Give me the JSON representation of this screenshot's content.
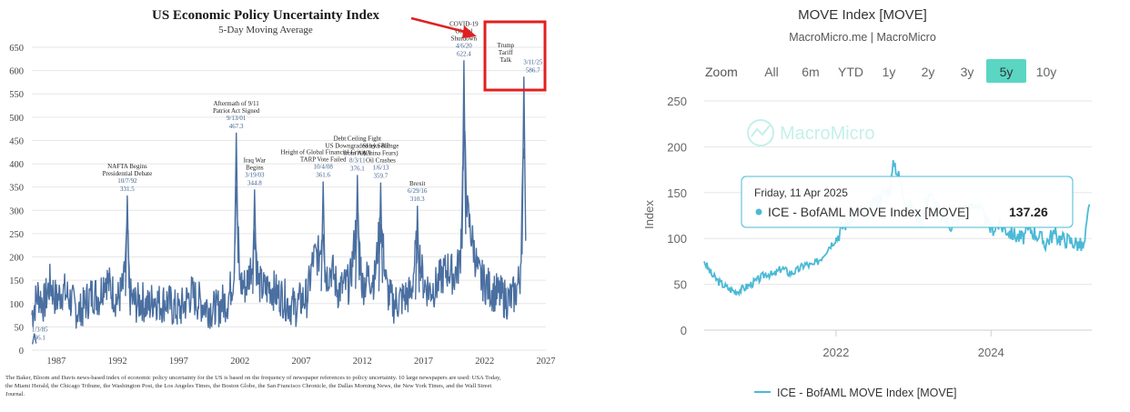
{
  "colors": {
    "epu_line": "#4a6fa0",
    "epu_annot": "#3d5f8f",
    "highlight": "#e02020",
    "move_line": "#4bb9d6",
    "zoom_active": "#5ad6c3",
    "grid": "#e6e6e6"
  },
  "left": {
    "title": "US Economic Policy Uncertainty Index",
    "subtitle": "5-Day Moving Average",
    "footnote": [
      "The Baker, Bloom and Davis news-based index of economic policy uncertainty for the US is based on the frequency of newspaper references to policy uncertainty. 10 large newspapers are used: USA Today,",
      "the Miami Herald, the Chicago Tribune, the Washington Post, the Los Angeles Times, the Boston Globe, the San Francisco Chronicle, the Dallas Morning News, the New York Times, and the Wall Street",
      "Journal."
    ]
  },
  "right": {
    "title": "MOVE Index [MOVE]",
    "source": "MacroMicro.me | MacroMicro",
    "zoom_label": "Zoom",
    "ranges": [
      "All",
      "6m",
      "YTD",
      "1y",
      "2y",
      "3y",
      "5y",
      "10y"
    ],
    "active_range": "5y",
    "watermark": "MacroMicro",
    "tooltip": {
      "date": "Friday, 11 Apr 2025",
      "series": "ICE - BofAML MOVE Index [MOVE]",
      "value": "137.26"
    },
    "legend": "ICE - BofAML MOVE Index [MOVE]"
  },
  "chart_data": [
    {
      "type": "line",
      "title": "US Economic Policy Uncertainty Index",
      "subtitle": "5-Day Moving Average",
      "ylim": [
        0,
        650
      ],
      "yticks": [
        0,
        50,
        100,
        150,
        200,
        250,
        300,
        350,
        400,
        450,
        500,
        550,
        600,
        650
      ],
      "xlim": [
        1985,
        2027
      ],
      "xticks": [
        1987,
        1992,
        1997,
        2002,
        2007,
        2012,
        2017,
        2022,
        2027
      ],
      "grid": true,
      "series": [
        {
          "x": [
            1985.0,
            1985.5,
            1986.0,
            1986.5,
            1987.0,
            1987.5,
            1988.0,
            1988.5,
            1989.0,
            1989.5,
            1990.0,
            1990.5,
            1991.0,
            1991.5,
            1992.0,
            1992.5,
            1992.8,
            1993.0,
            1993.5,
            1994.0,
            1994.5,
            1995.0,
            1995.5,
            1996.0,
            1996.5,
            1997.0,
            1997.5,
            1998.0,
            1998.5,
            1999.0,
            1999.5,
            2000.0,
            2000.5,
            2001.0,
            2001.5,
            2001.7,
            2002.0,
            2002.5,
            2003.0,
            2003.2,
            2003.5,
            2004.0,
            2004.5,
            2005.0,
            2005.5,
            2006.0,
            2006.5,
            2007.0,
            2007.5,
            2008.0,
            2008.5,
            2008.8,
            2009.0,
            2009.5,
            2010.0,
            2010.5,
            2011.0,
            2011.6,
            2012.0,
            2012.5,
            2013.0,
            2013.5,
            2014.0,
            2014.5,
            2015.0,
            2015.5,
            2016.0,
            2016.5,
            2017.0,
            2017.5,
            2018.0,
            2018.5,
            2019.0,
            2019.5,
            2020.0,
            2020.3,
            2020.6,
            2021.0,
            2021.5,
            2022.0,
            2022.5,
            2023.0,
            2023.5,
            2024.0,
            2024.5,
            2024.9,
            2025.2
          ],
          "y": [
            90,
            150,
            120,
            180,
            130,
            160,
            140,
            110,
            95,
            130,
            150,
            140,
            200,
            160,
            130,
            170,
            332,
            140,
            120,
            130,
            110,
            140,
            120,
            130,
            110,
            100,
            120,
            150,
            130,
            120,
            110,
            100,
            120,
            130,
            200,
            467,
            180,
            170,
            240,
            345,
            180,
            160,
            170,
            150,
            140,
            120,
            110,
            130,
            140,
            250,
            260,
            362,
            200,
            220,
            160,
            170,
            180,
            376,
            170,
            200,
            190,
            360,
            160,
            120,
            130,
            140,
            150,
            310,
            180,
            160,
            170,
            200,
            220,
            200,
            240,
            622,
            380,
            300,
            200,
            180,
            160,
            150,
            140,
            130,
            150,
            200,
            587
          ],
          "peaks": [
            {
              "x": 1985.2,
              "y": 36,
              "date": "1/3/85",
              "value": "36.1"
            },
            {
              "x": 1992.8,
              "y": 332,
              "date": "10/7/92",
              "value": "331.5",
              "note": [
                "NAFTA Begins",
                "Presidential Debate"
              ]
            },
            {
              "x": 2001.7,
              "y": 467,
              "date": "9/13/01",
              "value": "467.3",
              "note": [
                "Aftermath of 9/11",
                "Patriot Act Signed"
              ]
            },
            {
              "x": 2003.2,
              "y": 345,
              "date": "3/19/03",
              "value": "344.8",
              "note": [
                "Iraq War",
                "Begins"
              ]
            },
            {
              "x": 2008.8,
              "y": 362,
              "date": "10/4/08",
              "value": "361.6",
              "note": [
                "Height of Global Financial Crisis",
                "TARP Vote Failed"
              ]
            },
            {
              "x": 2011.6,
              "y": 376,
              "date": "8/3/11",
              "value": "376.1",
              "note": [
                "Debt Ceiling Fight",
                "US Downgraded by S&P",
                "from AAA"
              ]
            },
            {
              "x": 2013.5,
              "y": 360,
              "date": "1/6/13",
              "value": "359.7",
              "note": [
                "Stocks Plunge",
                "(China Fears)",
                "Oil Crashes"
              ]
            },
            {
              "x": 2016.5,
              "y": 310,
              "date": "6/29/16",
              "value": "310.3",
              "note": [
                "Brexit"
              ]
            },
            {
              "x": 2020.3,
              "y": 622,
              "date": "4/6/20",
              "value": "622.4",
              "note": [
                "COVID-19",
                "Global",
                "Shutdown"
              ]
            },
            {
              "x": 2025.2,
              "y": 587,
              "date": "3/11/25",
              "value": "586.7",
              "note": [
                "Trump",
                "Tariff",
                "Talk"
              ]
            }
          ]
        }
      ]
    },
    {
      "type": "line",
      "title": "MOVE Index [MOVE]",
      "ylabel": "Index",
      "ylim": [
        0,
        250
      ],
      "yticks": [
        0,
        50,
        100,
        150,
        200,
        250
      ],
      "xlim": [
        2020.3,
        2025.3
      ],
      "xticks": [
        2022,
        2024
      ],
      "series": [
        {
          "name": "ICE - BofAML MOVE Index [MOVE]",
          "x": [
            2020.3,
            2020.4,
            2020.5,
            2020.6,
            2020.7,
            2020.8,
            2020.9,
            2021.0,
            2021.1,
            2021.2,
            2021.3,
            2021.4,
            2021.5,
            2021.6,
            2021.7,
            2021.8,
            2021.9,
            2022.0,
            2022.1,
            2022.2,
            2022.3,
            2022.4,
            2022.5,
            2022.6,
            2022.7,
            2022.75,
            2022.8,
            2022.9,
            2023.0,
            2023.1,
            2023.2,
            2023.3,
            2023.4,
            2023.5,
            2023.6,
            2023.7,
            2023.8,
            2023.9,
            2024.0,
            2024.1,
            2024.2,
            2024.3,
            2024.4,
            2024.5,
            2024.6,
            2024.7,
            2024.8,
            2024.9,
            2025.0,
            2025.1,
            2025.2,
            2025.27
          ],
          "y": [
            75,
            60,
            52,
            46,
            42,
            45,
            50,
            55,
            62,
            60,
            68,
            62,
            65,
            72,
            70,
            78,
            90,
            100,
            115,
            122,
            130,
            125,
            140,
            148,
            155,
            185,
            170,
            140,
            130,
            120,
            150,
            135,
            120,
            115,
            122,
            130,
            140,
            125,
            110,
            115,
            110,
            104,
            100,
            110,
            104,
            95,
            105,
            100,
            98,
            95,
            90,
            137.26
          ]
        }
      ]
    }
  ]
}
